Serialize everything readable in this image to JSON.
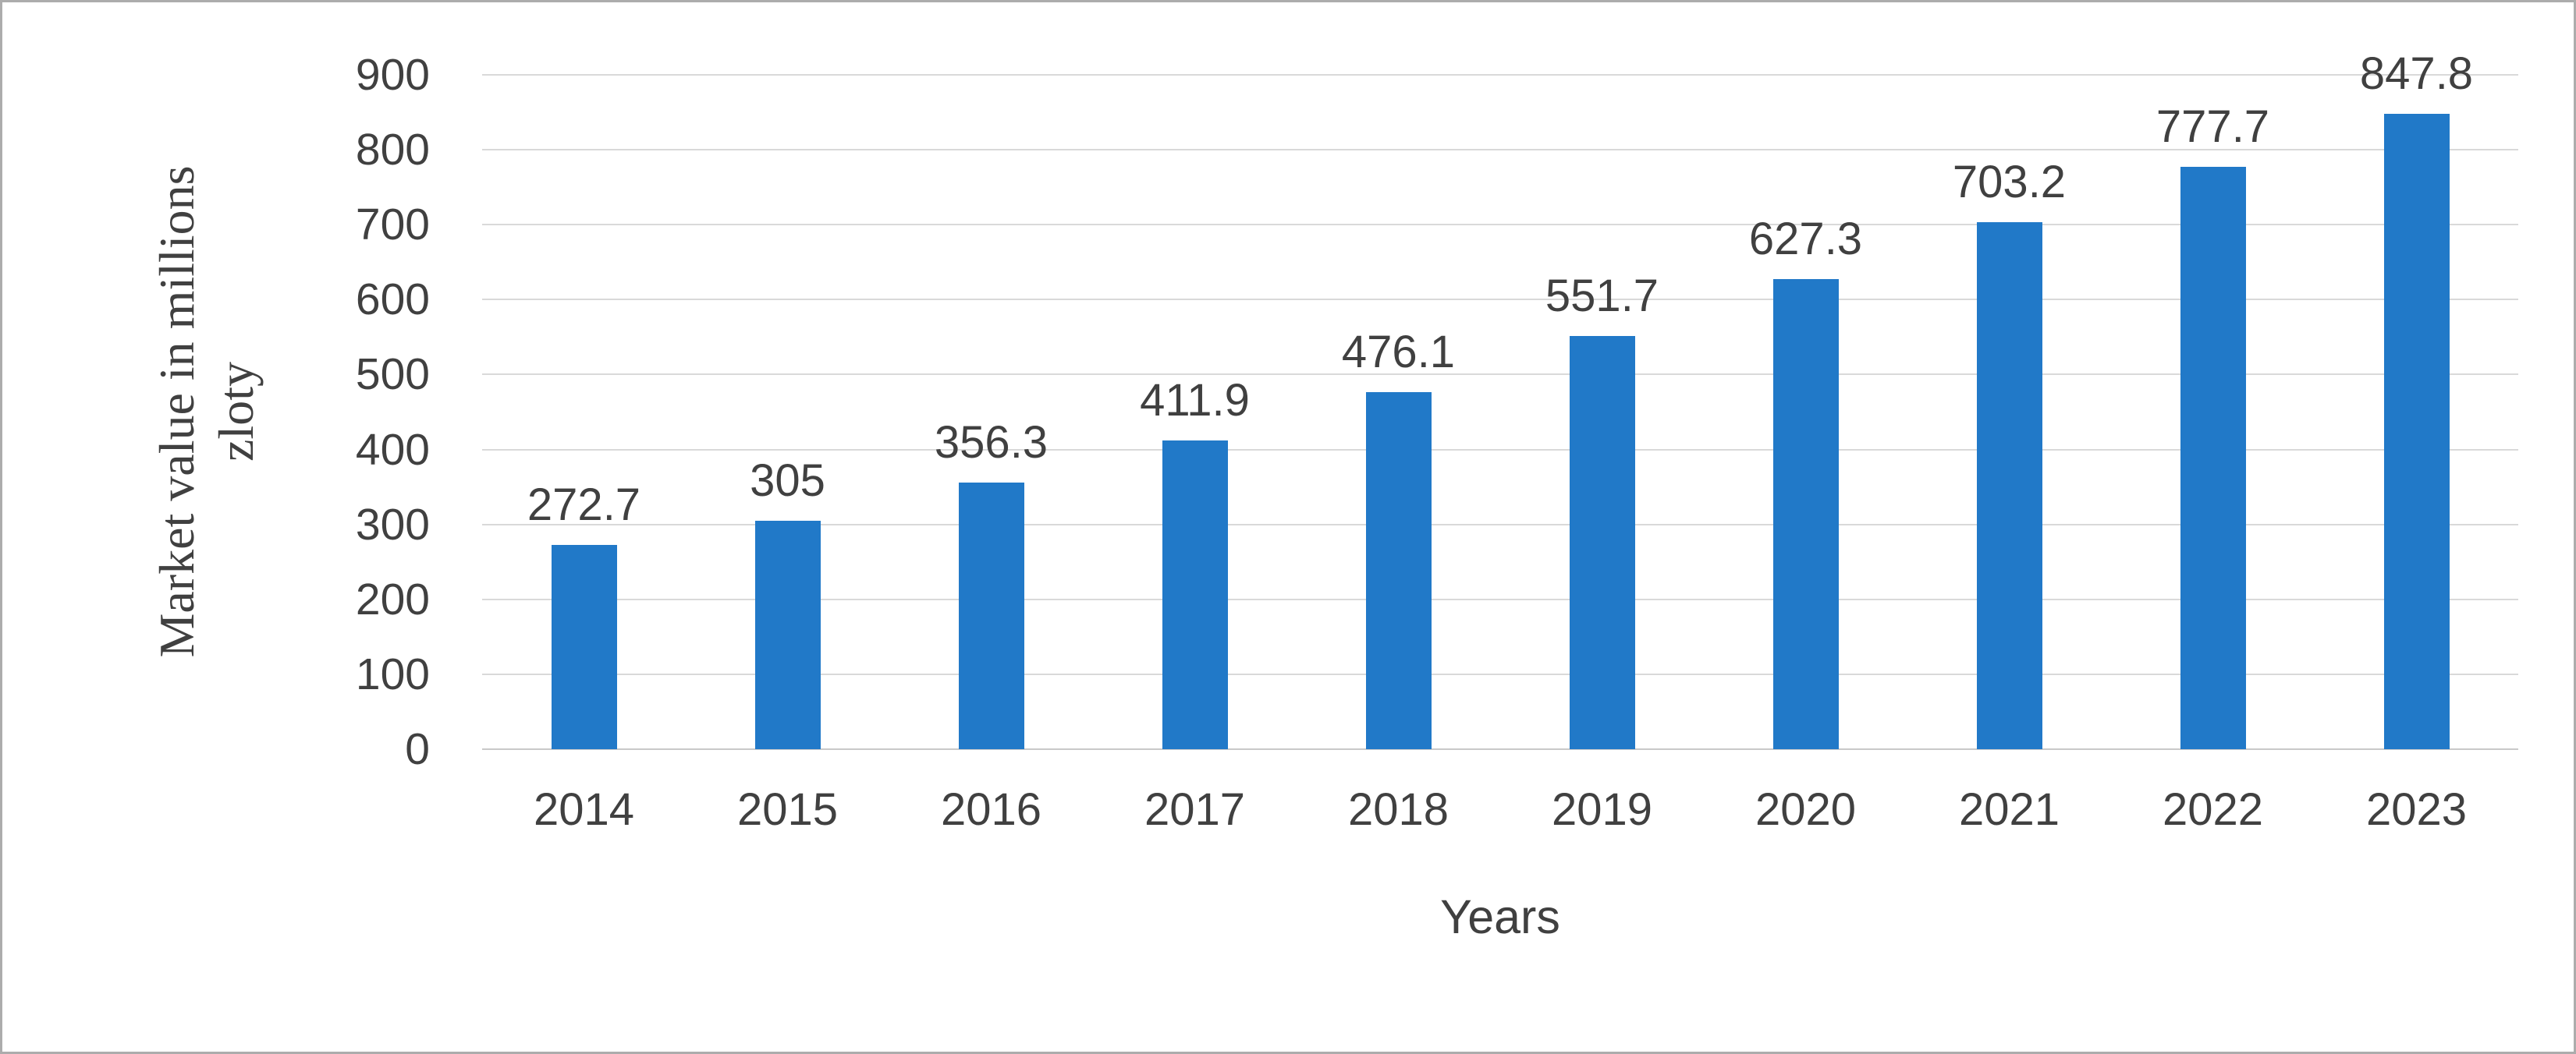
{
  "chart_data": {
    "type": "bar",
    "title": "",
    "categories": [
      "2014",
      "2015",
      "2016",
      "2017",
      "2018",
      "2019",
      "2020",
      "2021",
      "2022",
      "2023"
    ],
    "values": [
      272.7,
      305,
      356.3,
      411.9,
      476.1,
      551.7,
      627.3,
      703.2,
      777.7,
      847.8
    ],
    "value_labels": [
      "272.7",
      "305",
      "356.3",
      "411.9",
      "476.1",
      "551.7",
      "627.3",
      "703.2",
      "777.7",
      "847.8"
    ],
    "xlabel": "Years",
    "ylabel": "Market value in millions zloty",
    "ylabel_lines": [
      "Market value in millions",
      "zloty"
    ],
    "ylim": [
      0,
      900
    ],
    "ytick_step": 100,
    "yticks": [
      "0",
      "100",
      "200",
      "300",
      "400",
      "500",
      "600",
      "700",
      "800",
      "900"
    ],
    "grid": "horizontal",
    "legend": "none"
  },
  "colors": {
    "bar": "#2179c8",
    "gridline": "#d9d9d9",
    "axis_line": "#c9c9c9",
    "text": "#404040",
    "frame_border": "#acacac"
  }
}
